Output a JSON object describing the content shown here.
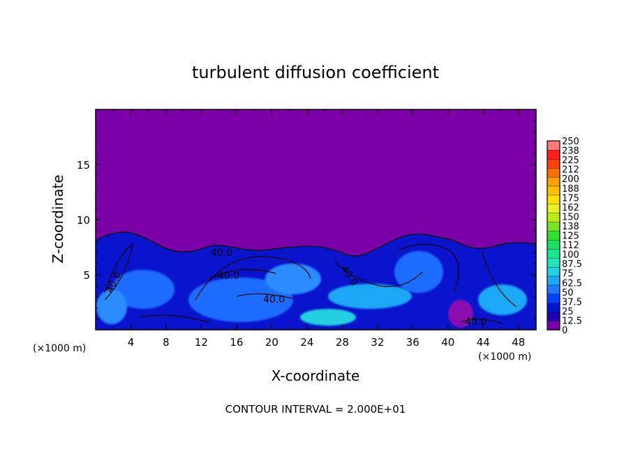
{
  "chart_data": {
    "type": "heatmap",
    "title": "turbulent diffusion coefficient",
    "xlabel": "X-coordinate",
    "ylabel": "Z-coordinate",
    "x_unit_left": "(×1000 m)",
    "x_unit_right": "(×1000 m)",
    "x_ticks": [
      "4",
      "8",
      "12",
      "16",
      "20",
      "24",
      "28",
      "32",
      "36",
      "40",
      "44",
      "48"
    ],
    "x_tick_values": [
      4,
      8,
      12,
      16,
      20,
      24,
      28,
      32,
      36,
      40,
      44,
      48
    ],
    "xlim": [
      0,
      50
    ],
    "y_ticks": [
      "5",
      "10",
      "15"
    ],
    "y_tick_values": [
      5,
      10,
      15
    ],
    "ylim": [
      0,
      20
    ],
    "colorbar": {
      "labels": [
        "0",
        "12.5",
        "25",
        "37.5",
        "50",
        "62.5",
        "75",
        "87.5",
        "100",
        "112",
        "125",
        "138",
        "150",
        "162",
        "175",
        "188",
        "200",
        "212",
        "225",
        "238",
        "250"
      ],
      "colors": [
        "#7b00a8",
        "#2200b0",
        "#0018d0",
        "#0040ff",
        "#1f78ff",
        "#1ea8f5",
        "#22d0e0",
        "#20e6b8",
        "#18e690",
        "#1ee060",
        "#30e030",
        "#7ae21e",
        "#b8ea16",
        "#e8f020",
        "#ffe000",
        "#ffc000",
        "#ffa000",
        "#ff7000",
        "#ff4010",
        "#ff2020",
        "#ff7a7a"
      ]
    },
    "contour_labels": [
      "40.0",
      "40.0",
      "40.0",
      "40.0",
      "40.0",
      "40.0"
    ],
    "annotation": "CONTOUR INTERVAL = 2.000E+01"
  }
}
